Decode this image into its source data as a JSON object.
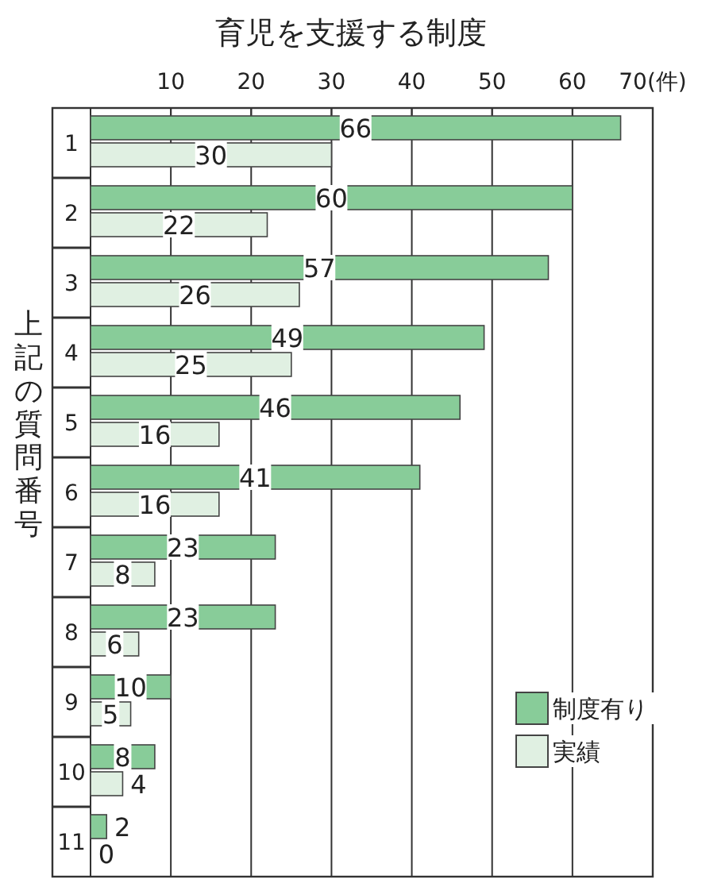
{
  "chart_data": {
    "type": "bar",
    "orientation": "horizontal",
    "title": "育児を支援する制度",
    "ylabel": "上記の質問番号",
    "categories": [
      "1",
      "2",
      "3",
      "4",
      "5",
      "6",
      "7",
      "8",
      "9",
      "10",
      "11"
    ],
    "series": [
      {
        "name": "制度有り",
        "color": "#88cc99",
        "values": [
          66,
          60,
          57,
          49,
          46,
          41,
          23,
          23,
          10,
          8,
          2
        ]
      },
      {
        "name": "実績",
        "color": "#e0f0e2",
        "values": [
          30,
          22,
          26,
          25,
          16,
          16,
          8,
          6,
          5,
          4,
          0
        ]
      }
    ],
    "xlim": [
      0,
      70
    ],
    "xticks": [
      10,
      20,
      30,
      40,
      50,
      60,
      {
        "value": 70,
        "label": "70(件)"
      }
    ],
    "grid": "x",
    "legend": "bottom right",
    "data_labels": true
  }
}
